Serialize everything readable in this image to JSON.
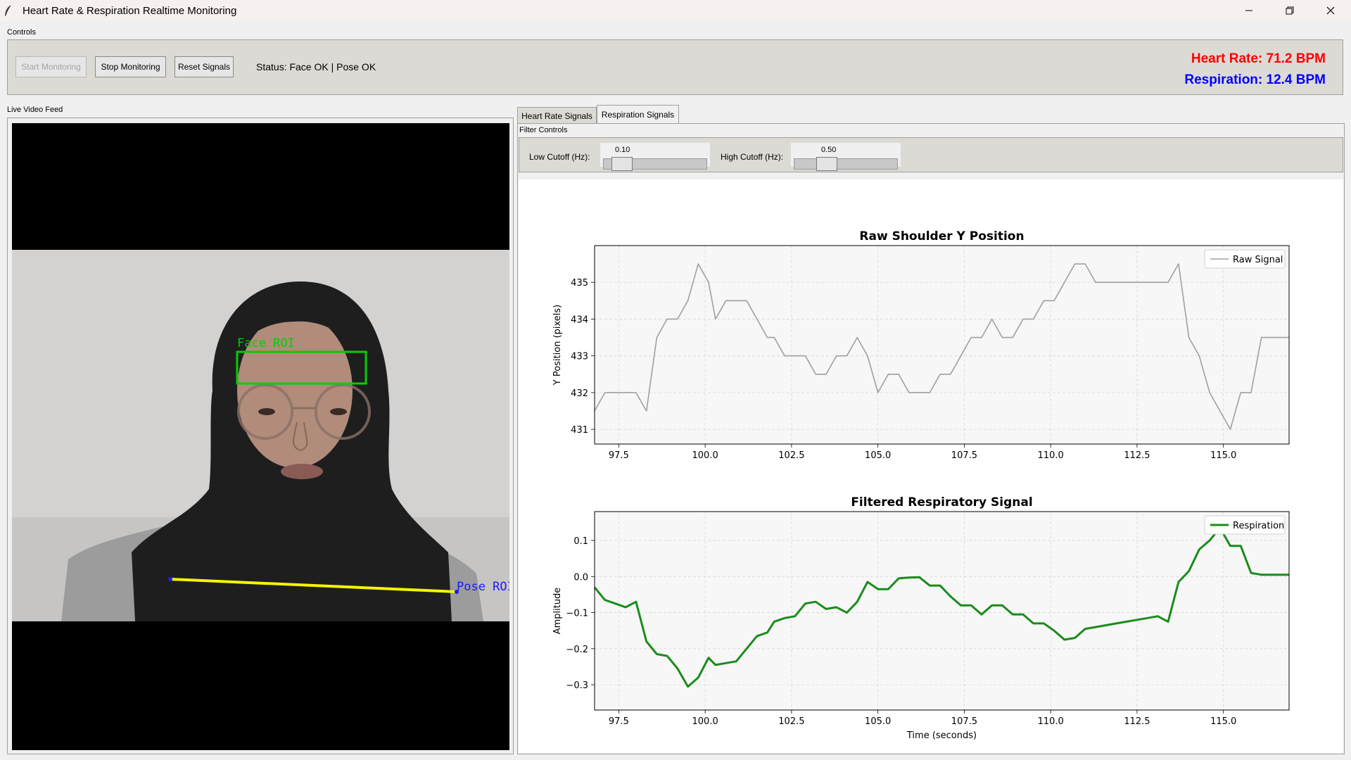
{
  "window": {
    "title": "Heart Rate & Respiration Realtime Monitoring",
    "minimize_icon": "minimize-icon",
    "maximize_icon": "restore-icon",
    "close_icon": "close-icon"
  },
  "controls": {
    "frame_label": "Controls",
    "start_label": "Start Monitoring",
    "stop_label": "Stop Monitoring",
    "reset_label": "Reset Signals",
    "status_text": "Status: Face OK | Pose OK",
    "heart_rate_text": "Heart Rate: 71.2 BPM",
    "respiration_text": "Respiration: 12.4 BPM",
    "heart_rate_color": "#ff0000",
    "respiration_color": "#0000ff"
  },
  "video": {
    "frame_label": "Live Video Feed",
    "face_roi_label": "Face ROI",
    "pose_roi_label": "Pose ROI",
    "face_roi_color": "#00d000",
    "pose_line_color": "#f5f500",
    "pose_roi_color": "#1a1aff"
  },
  "tabs": [
    {
      "label": "Heart Rate Signals",
      "active": false
    },
    {
      "label": "Respiration Signals",
      "active": true
    }
  ],
  "filter": {
    "frame_label": "Filter Controls",
    "low_label": "Low Cutoff (Hz):",
    "low_value": "0.10",
    "high_label": "High Cutoff (Hz):",
    "high_value": "0.50"
  },
  "chart_data": [
    {
      "type": "line",
      "title": "Raw Shoulder Y Position",
      "xlabel": "",
      "ylabel": "Y Position (pixels)",
      "xlim": [
        96.8,
        116.9
      ],
      "ylim": [
        430.6,
        436.0
      ],
      "xticks": [
        "97.5",
        "100.0",
        "102.5",
        "105.0",
        "107.5",
        "110.0",
        "112.5",
        "115.0"
      ],
      "yticks": [
        "431",
        "432",
        "433",
        "434",
        "435"
      ],
      "grid": true,
      "legend": "top-right",
      "series": [
        {
          "name": "Raw Signal",
          "color": "#a0a0a0",
          "x": [
            96.8,
            97.1,
            97.4,
            98.0,
            98.3,
            98.6,
            98.9,
            99.2,
            99.5,
            99.8,
            100.1,
            100.3,
            100.6,
            100.9,
            101.2,
            101.5,
            101.8,
            102.0,
            102.3,
            102.6,
            102.9,
            103.2,
            103.5,
            103.8,
            104.1,
            104.4,
            104.7,
            105.0,
            105.3,
            105.6,
            105.9,
            106.2,
            106.5,
            106.8,
            107.1,
            107.4,
            107.7,
            108.0,
            108.3,
            108.6,
            108.9,
            109.2,
            109.5,
            109.8,
            110.1,
            110.4,
            110.7,
            111.0,
            111.3,
            111.6,
            111.9,
            112.2,
            112.5,
            112.8,
            113.1,
            113.4,
            113.7,
            114.0,
            114.3,
            114.6,
            114.9,
            115.2,
            115.5,
            115.8,
            116.1,
            116.4,
            116.7,
            116.9
          ],
          "y": [
            431.5,
            432.0,
            432.0,
            432.0,
            431.5,
            433.5,
            434.0,
            434.0,
            434.5,
            435.5,
            435.0,
            434.0,
            434.5,
            434.5,
            434.5,
            434.0,
            433.5,
            433.5,
            433.0,
            433.0,
            433.0,
            432.5,
            432.5,
            433.0,
            433.0,
            433.5,
            433.0,
            432.0,
            432.5,
            432.5,
            432.0,
            432.0,
            432.0,
            432.5,
            432.5,
            433.0,
            433.5,
            433.5,
            434.0,
            433.5,
            433.5,
            434.0,
            434.0,
            434.5,
            434.5,
            435.0,
            435.5,
            435.5,
            435.0,
            435.0,
            435.0,
            435.0,
            435.0,
            435.0,
            435.0,
            435.0,
            435.5,
            433.5,
            433.0,
            432.0,
            431.5,
            431.0,
            432.0,
            432.0,
            433.5,
            433.5,
            433.5,
            433.5
          ]
        }
      ]
    },
    {
      "type": "line",
      "title": "Filtered Respiratory Signal",
      "xlabel": "Time (seconds)",
      "ylabel": "Amplitude",
      "xlim": [
        96.8,
        116.9
      ],
      "ylim": [
        -0.37,
        0.18
      ],
      "xticks": [
        "97.5",
        "100.0",
        "102.5",
        "105.0",
        "107.5",
        "110.0",
        "112.5",
        "115.0"
      ],
      "yticks": [
        "−0.3",
        "−0.2",
        "−0.1",
        "0.0",
        "0.1"
      ],
      "grid": true,
      "legend": "top-right",
      "series": [
        {
          "name": "Respiration",
          "color": "#1a8c1a",
          "x": [
            96.8,
            97.1,
            97.4,
            97.7,
            98.0,
            98.3,
            98.6,
            98.9,
            99.2,
            99.5,
            99.8,
            100.1,
            100.3,
            100.6,
            100.9,
            101.2,
            101.5,
            101.8,
            102.0,
            102.3,
            102.6,
            102.9,
            103.2,
            103.5,
            103.8,
            104.1,
            104.4,
            104.7,
            105.0,
            105.3,
            105.6,
            105.9,
            106.2,
            106.5,
            106.8,
            107.1,
            107.4,
            107.7,
            108.0,
            108.3,
            108.6,
            108.9,
            109.2,
            109.5,
            109.8,
            110.1,
            110.4,
            110.7,
            111.0,
            111.3,
            111.6,
            111.9,
            112.2,
            112.5,
            112.8,
            113.1,
            113.4,
            113.7,
            114.0,
            114.3,
            114.6,
            114.9,
            115.2,
            115.5,
            115.8,
            116.1,
            116.4,
            116.7,
            116.9
          ],
          "y": [
            -0.03,
            -0.065,
            -0.075,
            -0.085,
            -0.07,
            -0.18,
            -0.215,
            -0.22,
            -0.255,
            -0.305,
            -0.28,
            -0.225,
            -0.245,
            -0.24,
            -0.235,
            -0.2,
            -0.165,
            -0.155,
            -0.125,
            -0.115,
            -0.11,
            -0.075,
            -0.07,
            -0.09,
            -0.085,
            -0.1,
            -0.07,
            -0.015,
            -0.035,
            -0.035,
            -0.005,
            -0.003,
            -0.002,
            -0.025,
            -0.025,
            -0.055,
            -0.08,
            -0.08,
            -0.105,
            -0.08,
            -0.08,
            -0.105,
            -0.105,
            -0.13,
            -0.13,
            -0.15,
            -0.175,
            -0.17,
            -0.145,
            -0.14,
            -0.135,
            -0.13,
            -0.125,
            -0.12,
            -0.115,
            -0.11,
            -0.125,
            -0.015,
            0.015,
            0.075,
            0.1,
            0.135,
            0.085,
            0.085,
            0.01,
            0.005,
            0.005,
            0.005,
            0.005
          ]
        }
      ]
    }
  ]
}
